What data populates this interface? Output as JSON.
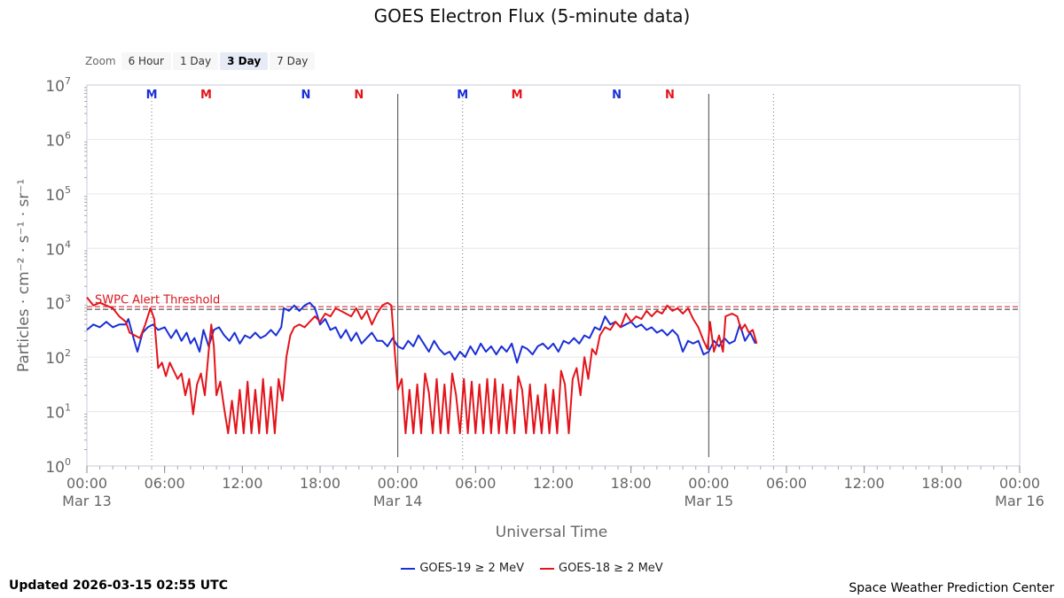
{
  "title": "GOES Electron Flux (5-minute data)",
  "zoom": {
    "label": "Zoom",
    "buttons": [
      "6 Hour",
      "1 Day",
      "3 Day",
      "7 Day"
    ],
    "active": "3 Day"
  },
  "footer": {
    "updated": "Updated 2026-03-15 02:55 UTC",
    "credit": "Space Weather Prediction Center"
  },
  "chart_data": {
    "type": "line",
    "title": "GOES Electron Flux (5-minute data)",
    "xlabel": "Universal Time",
    "ylabel": "Particles · cm⁻² · s⁻¹ · sr⁻¹",
    "y_scale": "log",
    "ylim_exp": [
      0,
      7
    ],
    "y_tick_exps": [
      0,
      1,
      2,
      3,
      4,
      5,
      6,
      7
    ],
    "xlim_hours": [
      0,
      72
    ],
    "x_ticks": [
      {
        "h": 0,
        "time": "00:00",
        "date": "Mar 13"
      },
      {
        "h": 6,
        "time": "06:00",
        "date": ""
      },
      {
        "h": 12,
        "time": "12:00",
        "date": ""
      },
      {
        "h": 18,
        "time": "18:00",
        "date": ""
      },
      {
        "h": 24,
        "time": "00:00",
        "date": "Mar 14"
      },
      {
        "h": 30,
        "time": "06:00",
        "date": ""
      },
      {
        "h": 36,
        "time": "12:00",
        "date": ""
      },
      {
        "h": 42,
        "time": "18:00",
        "date": ""
      },
      {
        "h": 48,
        "time": "00:00",
        "date": "Mar 15"
      },
      {
        "h": 54,
        "time": "06:00",
        "date": ""
      },
      {
        "h": 60,
        "time": "12:00",
        "date": ""
      },
      {
        "h": 66,
        "time": "18:00",
        "date": ""
      },
      {
        "h": 72,
        "time": "00:00",
        "date": "Mar 16"
      }
    ],
    "threshold": {
      "label": "SWPC Alert Threshold",
      "exp": 2.903,
      "color": "#d9161e"
    },
    "day_boundaries_hours": [
      24,
      48
    ],
    "noon_markers_hours": [
      5.0,
      29.0,
      53.0
    ],
    "markers": [
      {
        "h": 5.0,
        "label": "M",
        "color": "#1a2fd6"
      },
      {
        "h": 9.2,
        "label": "M",
        "color": "#e3141b"
      },
      {
        "h": 16.9,
        "label": "N",
        "color": "#1a2fd6"
      },
      {
        "h": 21.0,
        "label": "N",
        "color": "#e3141b"
      },
      {
        "h": 29.0,
        "label": "M",
        "color": "#1a2fd6"
      },
      {
        "h": 33.2,
        "label": "M",
        "color": "#e3141b"
      },
      {
        "h": 40.9,
        "label": "N",
        "color": "#1a2fd6"
      },
      {
        "h": 45.0,
        "label": "N",
        "color": "#e3141b"
      }
    ],
    "series": [
      {
        "name": "GOES-19 ≥ 2 MeV",
        "color": "#1a2fd6",
        "points": [
          [
            0,
            2.5
          ],
          [
            0.5,
            2.6
          ],
          [
            1,
            2.55
          ],
          [
            1.5,
            2.65
          ],
          [
            2,
            2.55
          ],
          [
            2.5,
            2.6
          ],
          [
            3,
            2.6
          ],
          [
            3.2,
            2.7
          ],
          [
            3.6,
            2.35
          ],
          [
            3.9,
            2.1
          ],
          [
            4.3,
            2.45
          ],
          [
            4.7,
            2.55
          ],
          [
            5.1,
            2.6
          ],
          [
            5.5,
            2.5
          ],
          [
            6,
            2.55
          ],
          [
            6.5,
            2.35
          ],
          [
            6.9,
            2.5
          ],
          [
            7.3,
            2.3
          ],
          [
            7.7,
            2.45
          ],
          [
            8,
            2.25
          ],
          [
            8.3,
            2.35
          ],
          [
            8.7,
            2.1
          ],
          [
            9,
            2.5
          ],
          [
            9.4,
            2.2
          ],
          [
            9.8,
            2.5
          ],
          [
            10.2,
            2.55
          ],
          [
            10.6,
            2.4
          ],
          [
            11,
            2.3
          ],
          [
            11.4,
            2.45
          ],
          [
            11.8,
            2.25
          ],
          [
            12.2,
            2.4
          ],
          [
            12.6,
            2.35
          ],
          [
            13,
            2.45
          ],
          [
            13.4,
            2.35
          ],
          [
            13.8,
            2.4
          ],
          [
            14.2,
            2.5
          ],
          [
            14.6,
            2.4
          ],
          [
            15,
            2.55
          ],
          [
            15.2,
            2.9
          ],
          [
            15.6,
            2.85
          ],
          [
            16,
            2.95
          ],
          [
            16.4,
            2.85
          ],
          [
            16.8,
            2.95
          ],
          [
            17.2,
            3.0
          ],
          [
            17.6,
            2.9
          ],
          [
            18,
            2.6
          ],
          [
            18.4,
            2.7
          ],
          [
            18.8,
            2.5
          ],
          [
            19.2,
            2.55
          ],
          [
            19.6,
            2.35
          ],
          [
            20,
            2.5
          ],
          [
            20.4,
            2.3
          ],
          [
            20.8,
            2.45
          ],
          [
            21.2,
            2.25
          ],
          [
            21.6,
            2.35
          ],
          [
            22,
            2.45
          ],
          [
            22.4,
            2.3
          ],
          [
            22.8,
            2.3
          ],
          [
            23.2,
            2.2
          ],
          [
            23.6,
            2.35
          ],
          [
            24,
            2.2
          ],
          [
            24.4,
            2.15
          ],
          [
            24.8,
            2.3
          ],
          [
            25.2,
            2.2
          ],
          [
            25.6,
            2.4
          ],
          [
            26,
            2.25
          ],
          [
            26.4,
            2.1
          ],
          [
            26.8,
            2.3
          ],
          [
            27.2,
            2.15
          ],
          [
            27.6,
            2.05
          ],
          [
            28,
            2.1
          ],
          [
            28.4,
            1.95
          ],
          [
            28.8,
            2.1
          ],
          [
            29.2,
            2.0
          ],
          [
            29.6,
            2.2
          ],
          [
            30,
            2.05
          ],
          [
            30.4,
            2.25
          ],
          [
            30.8,
            2.1
          ],
          [
            31.2,
            2.2
          ],
          [
            31.6,
            2.05
          ],
          [
            32,
            2.2
          ],
          [
            32.4,
            2.1
          ],
          [
            32.8,
            2.25
          ],
          [
            33.2,
            1.9
          ],
          [
            33.6,
            2.2
          ],
          [
            34,
            2.15
          ],
          [
            34.4,
            2.05
          ],
          [
            34.8,
            2.2
          ],
          [
            35.2,
            2.25
          ],
          [
            35.6,
            2.15
          ],
          [
            36,
            2.25
          ],
          [
            36.4,
            2.1
          ],
          [
            36.8,
            2.3
          ],
          [
            37.2,
            2.25
          ],
          [
            37.6,
            2.35
          ],
          [
            38,
            2.25
          ],
          [
            38.4,
            2.4
          ],
          [
            38.8,
            2.35
          ],
          [
            39.2,
            2.55
          ],
          [
            39.6,
            2.5
          ],
          [
            40,
            2.75
          ],
          [
            40.4,
            2.6
          ],
          [
            40.8,
            2.65
          ],
          [
            41.2,
            2.55
          ],
          [
            41.6,
            2.6
          ],
          [
            42,
            2.65
          ],
          [
            42.4,
            2.55
          ],
          [
            42.8,
            2.6
          ],
          [
            43.2,
            2.5
          ],
          [
            43.6,
            2.55
          ],
          [
            44,
            2.45
          ],
          [
            44.4,
            2.5
          ],
          [
            44.8,
            2.4
          ],
          [
            45.2,
            2.5
          ],
          [
            45.6,
            2.4
          ],
          [
            46,
            2.1
          ],
          [
            46.4,
            2.3
          ],
          [
            46.8,
            2.25
          ],
          [
            47.2,
            2.3
          ],
          [
            47.6,
            2.05
          ],
          [
            48,
            2.1
          ],
          [
            48.4,
            2.3
          ],
          [
            48.8,
            2.2
          ],
          [
            49.2,
            2.35
          ],
          [
            49.6,
            2.25
          ],
          [
            50,
            2.3
          ],
          [
            50.4,
            2.6
          ],
          [
            50.8,
            2.3
          ],
          [
            51.2,
            2.45
          ],
          [
            51.6,
            2.25
          ]
        ]
      },
      {
        "name": "GOES-18 ≥ 2 MeV",
        "color": "#e3141b",
        "points": [
          [
            0,
            3.1
          ],
          [
            0.5,
            2.95
          ],
          [
            1,
            3.0
          ],
          [
            1.5,
            2.95
          ],
          [
            2,
            2.9
          ],
          [
            2.5,
            2.75
          ],
          [
            3,
            2.65
          ],
          [
            3.3,
            2.45
          ],
          [
            3.7,
            2.4
          ],
          [
            4.1,
            2.35
          ],
          [
            4.5,
            2.6
          ],
          [
            4.9,
            2.9
          ],
          [
            5.2,
            2.7
          ],
          [
            5.5,
            1.8
          ],
          [
            5.8,
            1.9
          ],
          [
            6.1,
            1.65
          ],
          [
            6.4,
            1.9
          ],
          [
            6.7,
            1.75
          ],
          [
            7,
            1.6
          ],
          [
            7.3,
            1.7
          ],
          [
            7.6,
            1.3
          ],
          [
            7.9,
            1.6
          ],
          [
            8.2,
            0.95
          ],
          [
            8.5,
            1.5
          ],
          [
            8.8,
            1.7
          ],
          [
            9.1,
            1.3
          ],
          [
            9.4,
            2.1
          ],
          [
            9.6,
            2.6
          ],
          [
            9.8,
            2.2
          ],
          [
            10,
            1.3
          ],
          [
            10.3,
            1.55
          ],
          [
            10.6,
            1.05
          ],
          [
            10.9,
            0.6
          ],
          [
            11.2,
            1.2
          ],
          [
            11.5,
            0.6
          ],
          [
            11.8,
            1.4
          ],
          [
            12.1,
            0.6
          ],
          [
            12.4,
            1.55
          ],
          [
            12.7,
            0.6
          ],
          [
            13,
            1.4
          ],
          [
            13.3,
            0.6
          ],
          [
            13.6,
            1.6
          ],
          [
            13.9,
            0.6
          ],
          [
            14.2,
            1.45
          ],
          [
            14.5,
            0.6
          ],
          [
            14.8,
            1.6
          ],
          [
            15.1,
            1.2
          ],
          [
            15.4,
            2.0
          ],
          [
            15.7,
            2.4
          ],
          [
            16,
            2.55
          ],
          [
            16.4,
            2.6
          ],
          [
            16.8,
            2.55
          ],
          [
            17.2,
            2.65
          ],
          [
            17.6,
            2.75
          ],
          [
            18,
            2.65
          ],
          [
            18.4,
            2.8
          ],
          [
            18.8,
            2.75
          ],
          [
            19.2,
            2.9
          ],
          [
            19.6,
            2.85
          ],
          [
            20,
            2.8
          ],
          [
            20.4,
            2.75
          ],
          [
            20.8,
            2.9
          ],
          [
            21.2,
            2.7
          ],
          [
            21.6,
            2.85
          ],
          [
            22,
            2.6
          ],
          [
            22.4,
            2.8
          ],
          [
            22.8,
            2.95
          ],
          [
            23.2,
            3.0
          ],
          [
            23.5,
            2.95
          ],
          [
            23.8,
            2.0
          ],
          [
            24,
            1.4
          ],
          [
            24.3,
            1.6
          ],
          [
            24.6,
            0.6
          ],
          [
            24.9,
            1.4
          ],
          [
            25.2,
            0.6
          ],
          [
            25.5,
            1.5
          ],
          [
            25.8,
            0.6
          ],
          [
            26.1,
            1.7
          ],
          [
            26.4,
            1.35
          ],
          [
            26.7,
            0.6
          ],
          [
            27,
            1.6
          ],
          [
            27.3,
            0.6
          ],
          [
            27.6,
            1.5
          ],
          [
            27.9,
            0.6
          ],
          [
            28.2,
            1.7
          ],
          [
            28.5,
            1.3
          ],
          [
            28.8,
            0.6
          ],
          [
            29.1,
            1.6
          ],
          [
            29.4,
            0.6
          ],
          [
            29.7,
            1.55
          ],
          [
            30,
            0.6
          ],
          [
            30.3,
            1.5
          ],
          [
            30.6,
            0.6
          ],
          [
            30.9,
            1.6
          ],
          [
            31.2,
            0.6
          ],
          [
            31.5,
            1.6
          ],
          [
            31.8,
            0.6
          ],
          [
            32.1,
            1.5
          ],
          [
            32.4,
            0.6
          ],
          [
            32.7,
            1.4
          ],
          [
            33,
            0.6
          ],
          [
            33.3,
            1.65
          ],
          [
            33.6,
            1.4
          ],
          [
            33.9,
            0.6
          ],
          [
            34.2,
            1.5
          ],
          [
            34.5,
            0.6
          ],
          [
            34.8,
            1.3
          ],
          [
            35.1,
            0.6
          ],
          [
            35.4,
            1.5
          ],
          [
            35.7,
            0.6
          ],
          [
            36,
            1.4
          ],
          [
            36.3,
            0.6
          ],
          [
            36.6,
            1.75
          ],
          [
            36.9,
            1.5
          ],
          [
            37.2,
            0.6
          ],
          [
            37.5,
            1.6
          ],
          [
            37.8,
            1.8
          ],
          [
            38.1,
            1.3
          ],
          [
            38.4,
            2.0
          ],
          [
            38.7,
            1.6
          ],
          [
            39,
            2.15
          ],
          [
            39.3,
            2.05
          ],
          [
            39.6,
            2.4
          ],
          [
            40,
            2.55
          ],
          [
            40.4,
            2.5
          ],
          [
            40.8,
            2.65
          ],
          [
            41.2,
            2.55
          ],
          [
            41.6,
            2.8
          ],
          [
            42,
            2.65
          ],
          [
            42.4,
            2.75
          ],
          [
            42.8,
            2.7
          ],
          [
            43.2,
            2.85
          ],
          [
            43.6,
            2.75
          ],
          [
            44,
            2.85
          ],
          [
            44.4,
            2.8
          ],
          [
            44.8,
            2.95
          ],
          [
            45.2,
            2.85
          ],
          [
            45.6,
            2.9
          ],
          [
            46,
            2.8
          ],
          [
            46.4,
            2.9
          ],
          [
            46.8,
            2.7
          ],
          [
            47.2,
            2.55
          ],
          [
            47.6,
            2.3
          ],
          [
            47.9,
            2.15
          ],
          [
            48.1,
            2.65
          ],
          [
            48.4,
            2.1
          ],
          [
            48.8,
            2.4
          ],
          [
            49.1,
            2.1
          ],
          [
            49.3,
            2.75
          ],
          [
            49.8,
            2.8
          ],
          [
            50.2,
            2.75
          ],
          [
            50.5,
            2.5
          ],
          [
            50.8,
            2.6
          ],
          [
            51.1,
            2.45
          ],
          [
            51.4,
            2.5
          ],
          [
            51.7,
            2.25
          ]
        ]
      }
    ]
  }
}
